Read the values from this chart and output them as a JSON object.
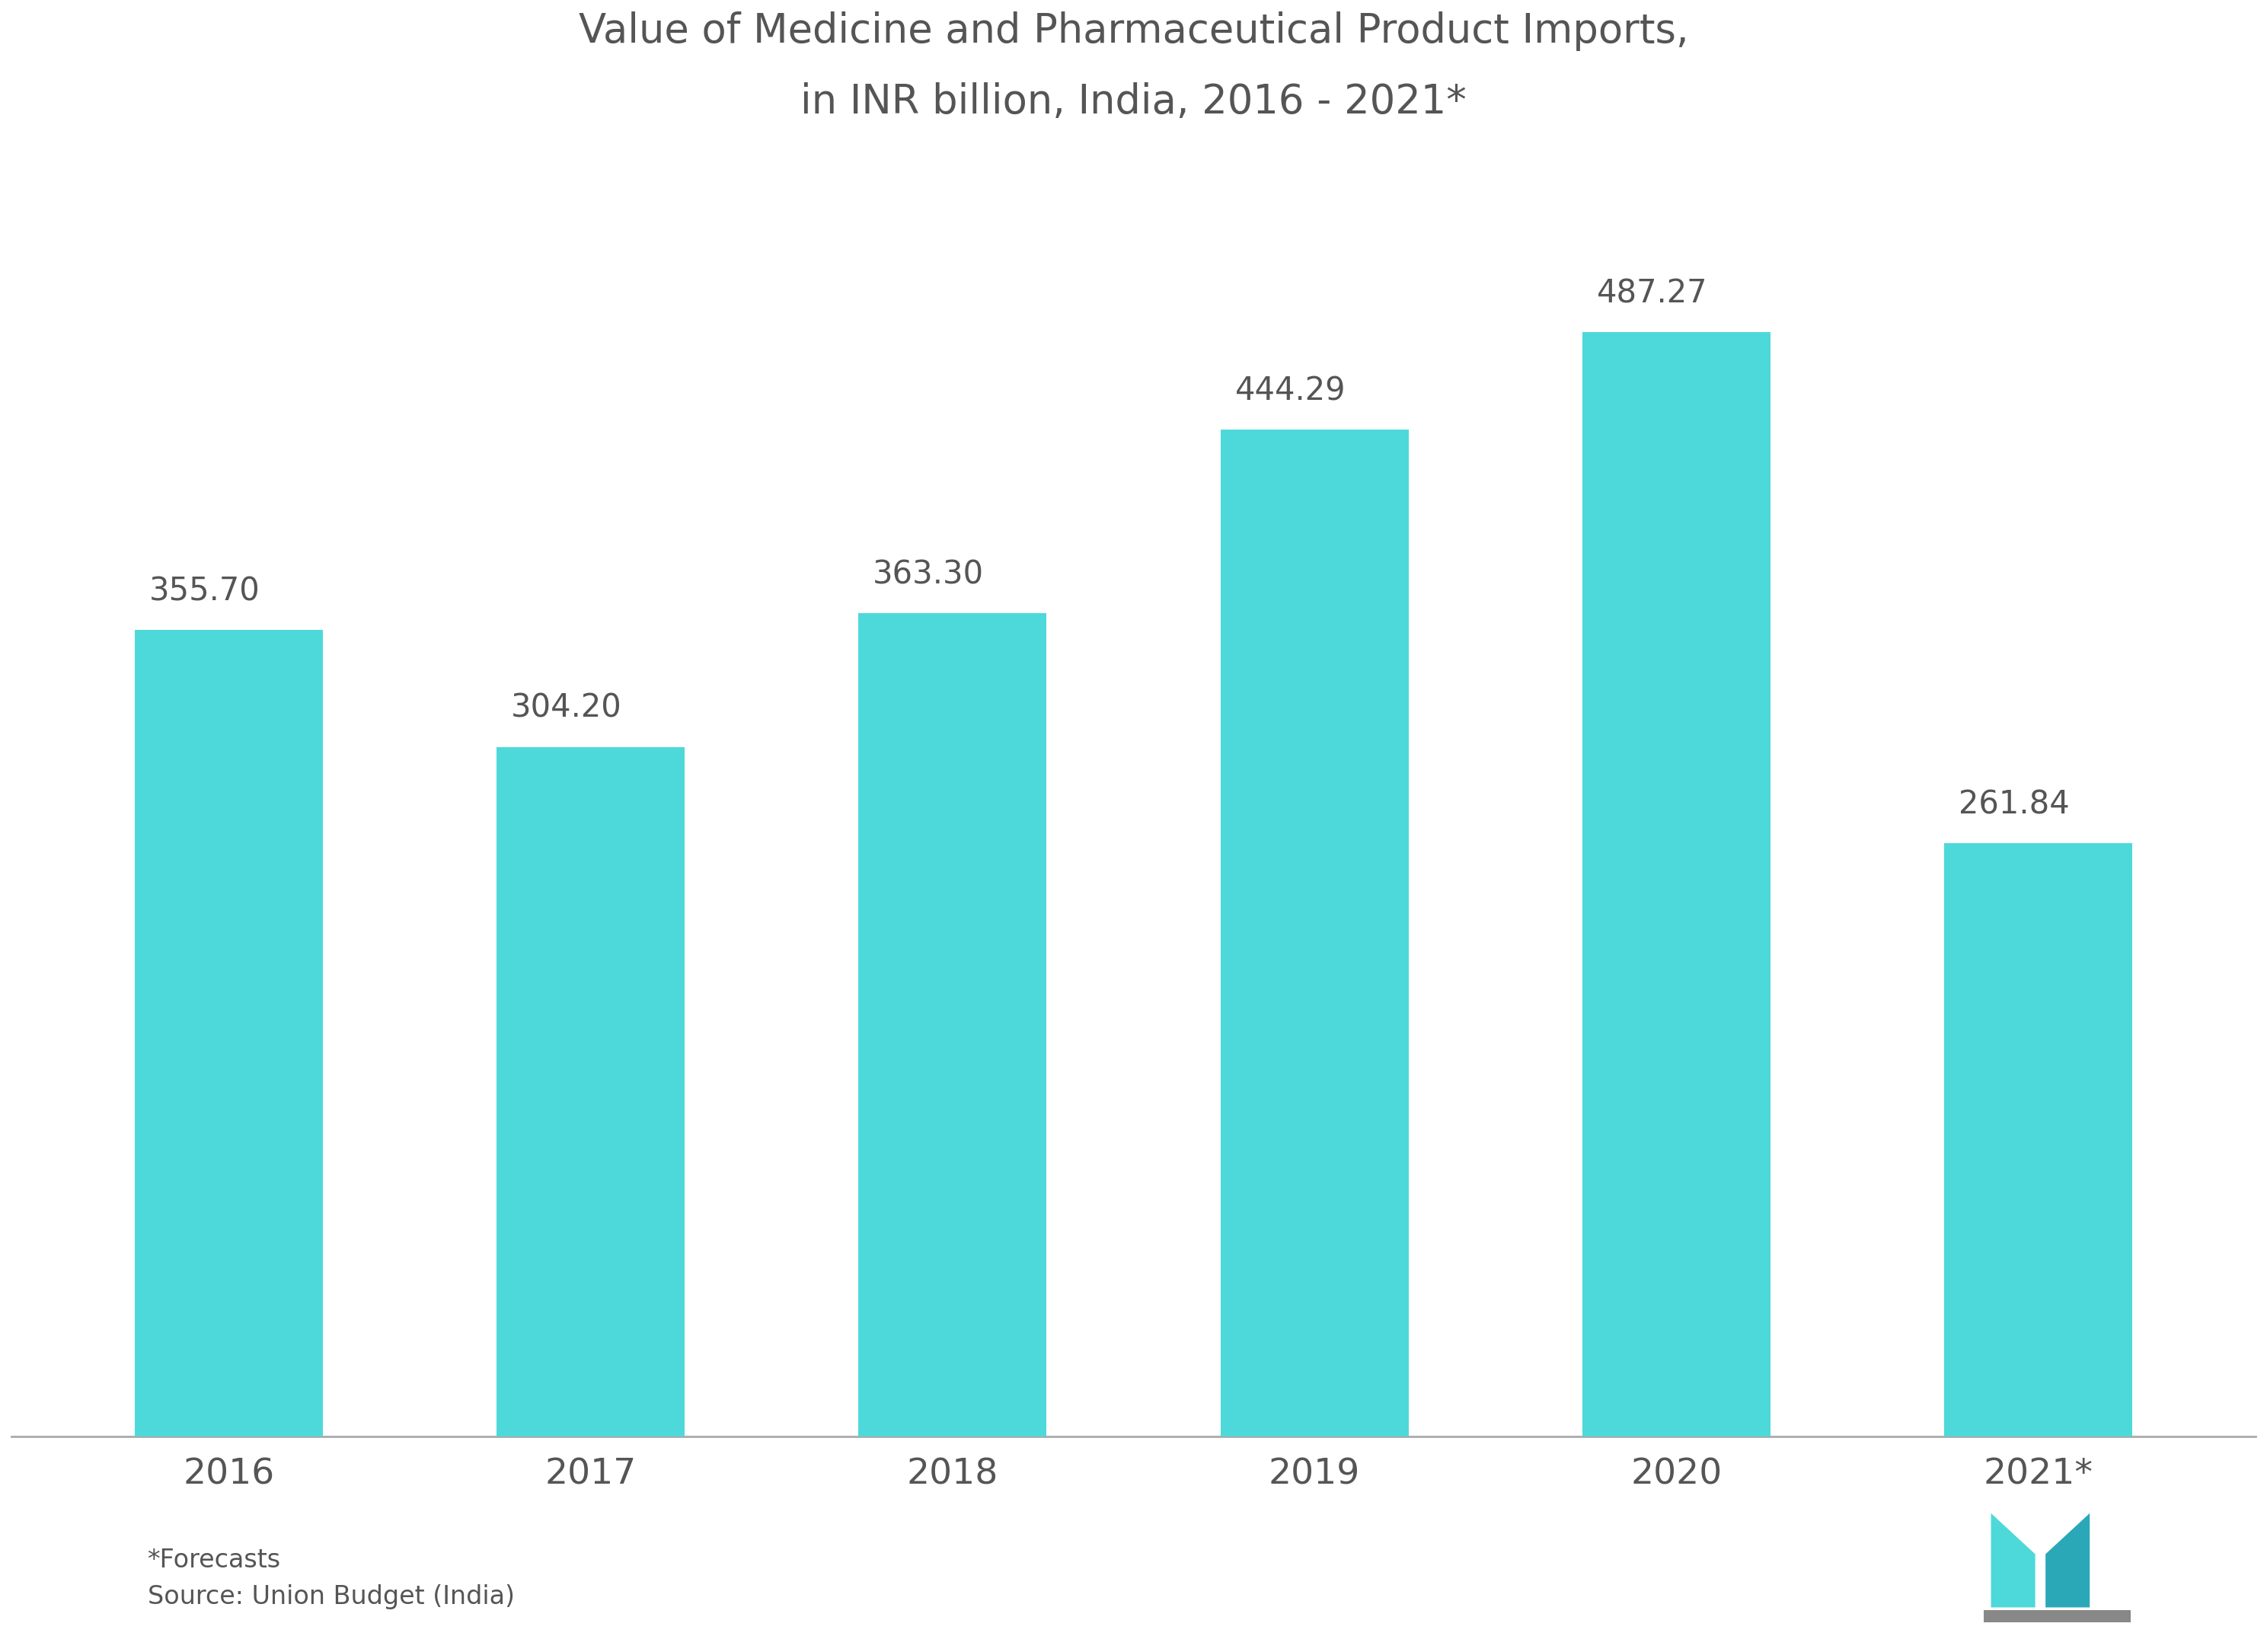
{
  "title_line1": "Value of Medicine and Pharmaceutical Product Imports,",
  "title_line2": "in INR billion, India, 2016 - 2021*",
  "categories": [
    "2016",
    "2017",
    "2018",
    "2019",
    "2020",
    "2021*"
  ],
  "values": [
    355.7,
    304.2,
    363.3,
    444.29,
    487.27,
    261.84
  ],
  "bar_color": "#4DD9D9",
  "background_color": "#ffffff",
  "plot_bg_color": "#ffffff",
  "text_color": "#555555",
  "title_color": "#555555",
  "label_color": "#555555",
  "axis_color": "#aaaaaa",
  "footnote_line1": "*Forecasts",
  "footnote_line2": "Source: Union Budget (India)",
  "ylim": [
    0,
    580
  ],
  "bar_width": 0.52
}
